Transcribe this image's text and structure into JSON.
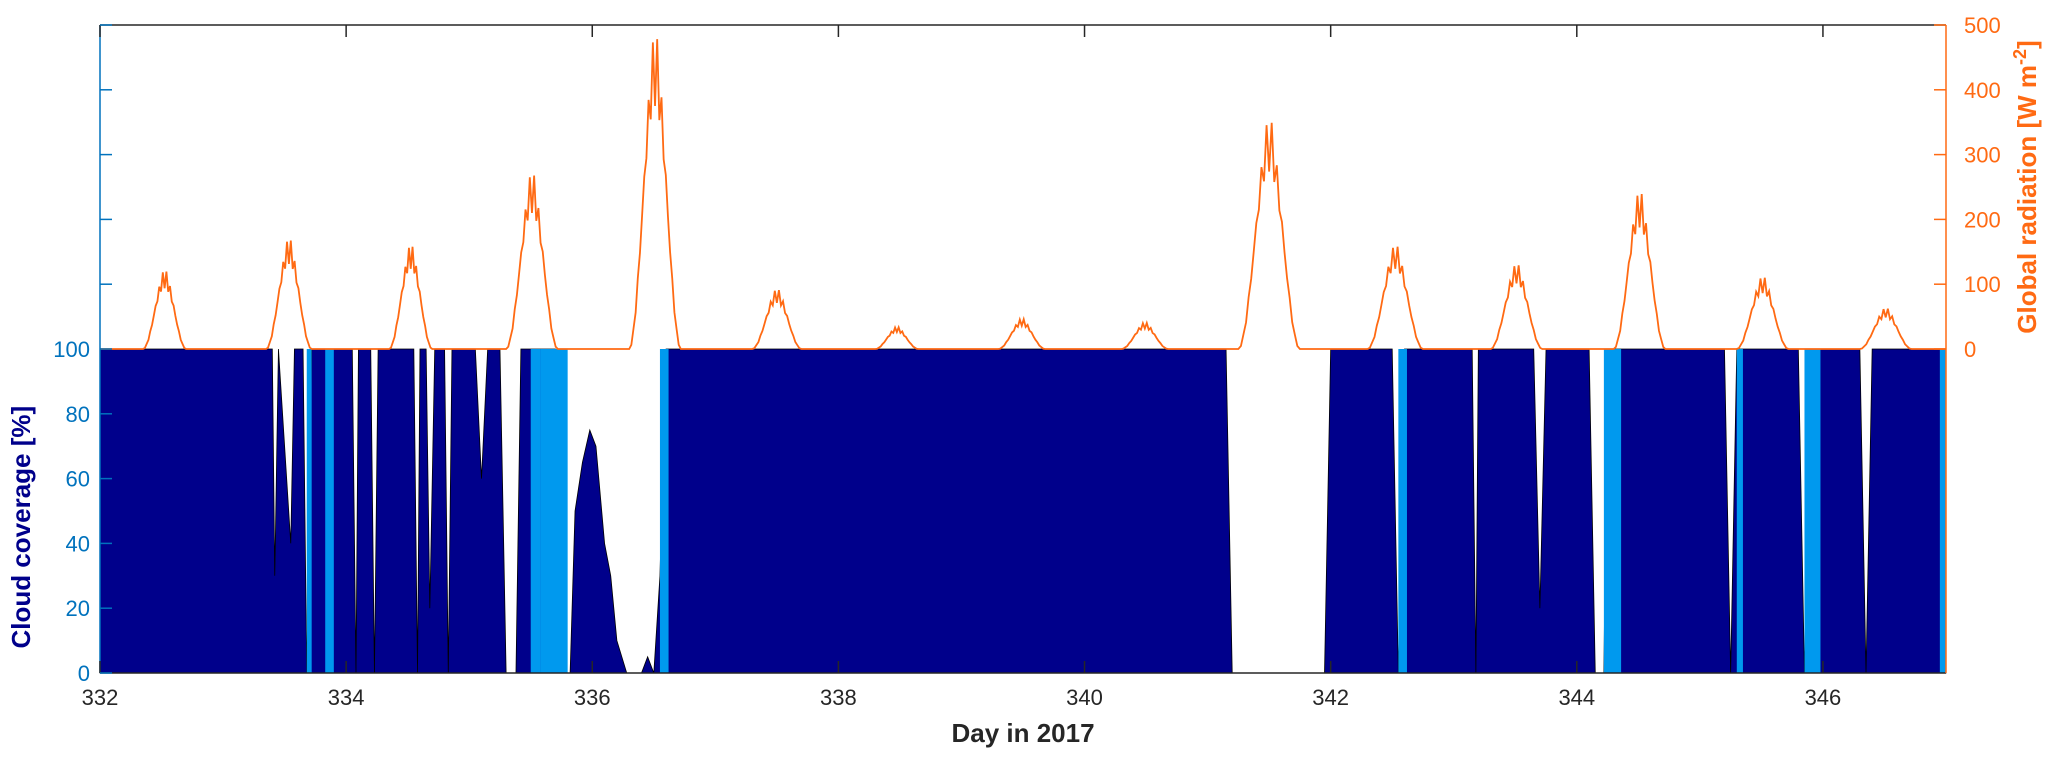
{
  "chart_data": {
    "type": "area",
    "xlabel": "Day in 2017",
    "ylabel_left": "Cloud coverage [%]",
    "ylabel_right": "Global radiation [W m",
    "ylabel_right_sup": "-2",
    "ylabel_right_close": "]",
    "xlim": [
      332,
      347
    ],
    "x_ticks": [
      332,
      334,
      336,
      338,
      340,
      342,
      344,
      346
    ],
    "ylim_left": [
      0,
      200
    ],
    "y_left_ticks": [
      0,
      20,
      40,
      60,
      80,
      100
    ],
    "ylim_right": [
      -500,
      500
    ],
    "y_right_ticks": [
      0,
      100,
      200,
      300,
      400,
      500
    ],
    "colors": {
      "total_cloud": "#00008b",
      "low_cloud": "#0099ee",
      "radiation": "#ff6a13",
      "left_axis": "#0072bd",
      "left_label": "#00008b",
      "right_axis": "#ff6a13",
      "frame": "#262626"
    },
    "series": [
      {
        "kind": "cloud_total",
        "segments": [
          [
            332.0,
            100
          ],
          [
            333.4,
            100
          ],
          [
            333.42,
            30
          ],
          [
            333.45,
            100
          ],
          [
            333.55,
            40
          ],
          [
            333.58,
            100
          ],
          [
            333.65,
            100
          ],
          [
            333.68,
            0
          ],
          [
            333.72,
            100
          ],
          [
            334.0,
            100
          ],
          [
            334.05,
            100
          ],
          [
            334.08,
            0
          ],
          [
            334.1,
            100
          ],
          [
            334.2,
            100
          ],
          [
            334.23,
            0
          ],
          [
            334.26,
            100
          ],
          [
            334.55,
            100
          ],
          [
            334.58,
            0
          ],
          [
            334.6,
            100
          ],
          [
            334.65,
            100
          ],
          [
            334.68,
            20
          ],
          [
            334.72,
            100
          ],
          [
            334.8,
            100
          ],
          [
            334.83,
            0
          ],
          [
            334.86,
            100
          ],
          [
            335.05,
            100
          ],
          [
            335.1,
            60
          ],
          [
            335.15,
            100
          ],
          [
            335.25,
            100
          ],
          [
            335.3,
            0
          ],
          [
            335.38,
            0
          ],
          [
            335.42,
            100
          ],
          [
            335.7,
            100
          ],
          [
            335.75,
            0
          ],
          [
            335.82,
            0
          ],
          [
            335.86,
            50
          ],
          [
            335.92,
            65
          ],
          [
            335.98,
            75
          ],
          [
            336.03,
            70
          ],
          [
            336.1,
            40
          ],
          [
            336.15,
            30
          ],
          [
            336.2,
            10
          ],
          [
            336.28,
            0
          ],
          [
            336.4,
            0
          ],
          [
            336.45,
            5
          ],
          [
            336.5,
            0
          ],
          [
            336.55,
            30
          ],
          [
            336.6,
            100
          ],
          [
            336.68,
            100
          ],
          [
            337.0,
            100
          ],
          [
            341.15,
            100
          ],
          [
            341.2,
            0
          ],
          [
            341.95,
            0
          ],
          [
            342.0,
            100
          ],
          [
            342.5,
            100
          ],
          [
            342.55,
            0
          ],
          [
            342.6,
            100
          ],
          [
            343.15,
            100
          ],
          [
            343.18,
            0
          ],
          [
            343.2,
            100
          ],
          [
            343.65,
            100
          ],
          [
            343.7,
            20
          ],
          [
            343.75,
            100
          ],
          [
            344.1,
            100
          ],
          [
            344.15,
            0
          ],
          [
            344.22,
            0
          ],
          [
            344.25,
            100
          ],
          [
            345.2,
            100
          ],
          [
            345.25,
            0
          ],
          [
            345.3,
            100
          ],
          [
            345.8,
            100
          ],
          [
            345.85,
            0
          ],
          [
            345.9,
            100
          ],
          [
            346.3,
            100
          ],
          [
            346.35,
            0
          ],
          [
            346.4,
            100
          ],
          [
            347.0,
            100
          ]
        ]
      },
      {
        "kind": "cloud_low",
        "bands": [
          [
            333.68,
            333.72,
            100
          ],
          [
            333.83,
            333.9,
            100
          ],
          [
            335.5,
            335.58,
            100
          ],
          [
            335.58,
            335.8,
            100
          ],
          [
            336.55,
            336.62,
            100
          ],
          [
            342.55,
            342.62,
            100
          ],
          [
            344.22,
            344.36,
            100
          ],
          [
            345.3,
            345.35,
            100
          ],
          [
            345.85,
            345.98,
            100
          ],
          [
            346.95,
            347.0,
            100
          ]
        ]
      },
      {
        "kind": "radiation",
        "days": [
          {
            "start": 332.35,
            "end": 332.7,
            "peak": 125
          },
          {
            "start": 333.35,
            "end": 333.72,
            "peak": 175
          },
          {
            "start": 334.35,
            "end": 334.7,
            "peak": 165
          },
          {
            "start": 335.3,
            "end": 335.72,
            "peak": 280
          },
          {
            "start": 336.3,
            "end": 336.72,
            "peak": 500
          },
          {
            "start": 337.3,
            "end": 337.7,
            "peak": 95
          },
          {
            "start": 338.3,
            "end": 338.65,
            "peak": 35
          },
          {
            "start": 339.3,
            "end": 339.68,
            "peak": 48
          },
          {
            "start": 340.3,
            "end": 340.68,
            "peak": 42
          },
          {
            "start": 341.25,
            "end": 341.75,
            "peak": 365
          },
          {
            "start": 342.3,
            "end": 342.75,
            "peak": 165
          },
          {
            "start": 343.3,
            "end": 343.72,
            "peak": 135
          },
          {
            "start": 344.3,
            "end": 344.72,
            "peak": 250
          },
          {
            "start": 345.3,
            "end": 345.72,
            "peak": 115
          },
          {
            "start": 346.3,
            "end": 346.72,
            "peak": 65
          }
        ]
      }
    ]
  }
}
